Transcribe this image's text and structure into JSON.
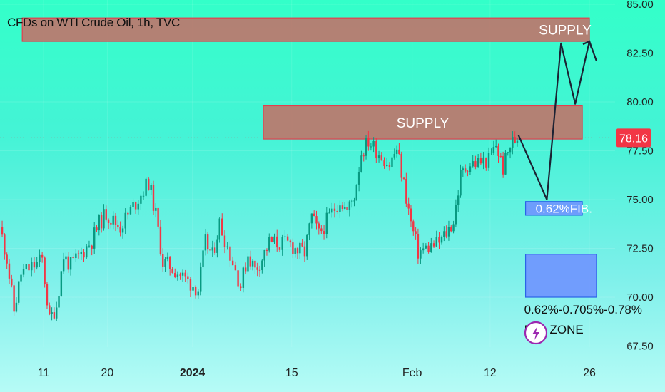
{
  "header": {
    "title": "CFDs on WTI Crude Oil, 1h, TVC"
  },
  "chart_data": {
    "type": "line",
    "title": "CFDs on WTI Crude Oil, 1h, TVC",
    "symbol": "CFDs on WTI Crude Oil",
    "interval": "1h",
    "source": "TVC",
    "ylim": [
      67.5,
      85.0
    ],
    "y_ticks": [
      "67.50",
      "70.00",
      "72.50",
      "75.00",
      "77.50",
      "80.00",
      "82.50",
      "85.00"
    ],
    "x_ticks": [
      "11",
      "20",
      "2024",
      "15",
      "Feb",
      "12",
      "26"
    ],
    "current_price": {
      "label": "78.16",
      "value": 78.16,
      "color": "#f23645"
    },
    "series": [
      {
        "points": [
          [
            "2023-12-05",
            73.6
          ],
          [
            "2023-12-06",
            72.0
          ],
          [
            "2023-12-07",
            69.3
          ],
          [
            "2023-12-08",
            71.2
          ],
          [
            "2023-12-11",
            71.9
          ],
          [
            "2023-12-12",
            68.8
          ],
          [
            "2023-12-13",
            69.6
          ],
          [
            "2023-12-14",
            72.1
          ],
          [
            "2023-12-15",
            71.6
          ],
          [
            "2023-12-18",
            72.9
          ],
          [
            "2023-12-19",
            73.8
          ],
          [
            "2023-12-20",
            74.3
          ],
          [
            "2023-12-21",
            73.9
          ],
          [
            "2023-12-22",
            73.6
          ],
          [
            "2023-12-26",
            75.9
          ],
          [
            "2023-12-27",
            74.2
          ],
          [
            "2023-12-28",
            71.8
          ],
          [
            "2023-12-29",
            71.6
          ],
          [
            "2024-01-02",
            70.4
          ],
          [
            "2024-01-03",
            72.8
          ],
          [
            "2024-01-04",
            72.1
          ],
          [
            "2024-01-05",
            73.8
          ],
          [
            "2024-01-08",
            70.6
          ],
          [
            "2024-01-09",
            72.2
          ],
          [
            "2024-01-10",
            71.4
          ],
          [
            "2024-01-11",
            72.0
          ],
          [
            "2024-01-12",
            72.8
          ],
          [
            "2024-01-15",
            72.7
          ],
          [
            "2024-01-16",
            72.4
          ],
          [
            "2024-01-17",
            72.3
          ],
          [
            "2024-01-18",
            74.1
          ],
          [
            "2024-01-19",
            73.2
          ],
          [
            "2024-01-22",
            75.0
          ],
          [
            "2024-01-23",
            74.4
          ],
          [
            "2024-01-24",
            75.2
          ],
          [
            "2024-01-25",
            77.4
          ],
          [
            "2024-01-26",
            78.0
          ],
          [
            "2024-01-29",
            76.8
          ],
          [
            "2024-01-30",
            77.6
          ],
          [
            "2024-01-31",
            75.8
          ],
          [
            "2024-02-01",
            73.8
          ],
          [
            "2024-02-02",
            72.3
          ],
          [
            "2024-02-05",
            72.8
          ],
          [
            "2024-02-06",
            73.3
          ],
          [
            "2024-02-07",
            73.9
          ],
          [
            "2024-02-08",
            76.2
          ],
          [
            "2024-02-09",
            76.8
          ],
          [
            "2024-02-12",
            77.0
          ],
          [
            "2024-02-13",
            77.8
          ],
          [
            "2024-02-14",
            76.6
          ],
          [
            "2024-02-15",
            77.8
          ],
          [
            "2024-02-16",
            78.2
          ]
        ]
      }
    ],
    "annotations": {
      "zones": [
        {
          "name": "supply-zone-upper",
          "label": "SUPPLY",
          "y_range": [
            83.1,
            84.3
          ],
          "x_range": [
            "2023-12-08",
            "2024-02-26"
          ],
          "color": "#b97a6f"
        },
        {
          "name": "supply-zone-lower",
          "label": "SUPPLY",
          "y_range": [
            78.1,
            79.8
          ],
          "x_range": [
            "2024-01-11",
            "2024-02-25"
          ],
          "color": "#b97a6f"
        },
        {
          "name": "fib-zone",
          "label": "0.62%FIB.",
          "y_range": [
            74.2,
            74.9
          ],
          "x_range": [
            "2024-02-17",
            "2024-02-25"
          ],
          "color": "#6f93ff"
        },
        {
          "name": "fib-area",
          "label": "",
          "y_range": [
            70.0,
            72.2
          ],
          "x_range": [
            "2024-02-17",
            "2024-02-27"
          ],
          "color": "#6f93ff"
        }
      ],
      "notes": [
        "0.62%-0.705%-0.78%",
        "FIB. ZONE"
      ],
      "projected_path": [
        [
          "2024-02-16",
          78.3
        ],
        [
          "2024-02-20",
          75.0
        ],
        [
          "2024-02-22",
          83.0
        ],
        [
          "2024-02-24",
          79.9
        ],
        [
          "2024-02-26",
          83.1
        ],
        [
          "2024-02-27",
          82.1
        ]
      ]
    }
  }
}
